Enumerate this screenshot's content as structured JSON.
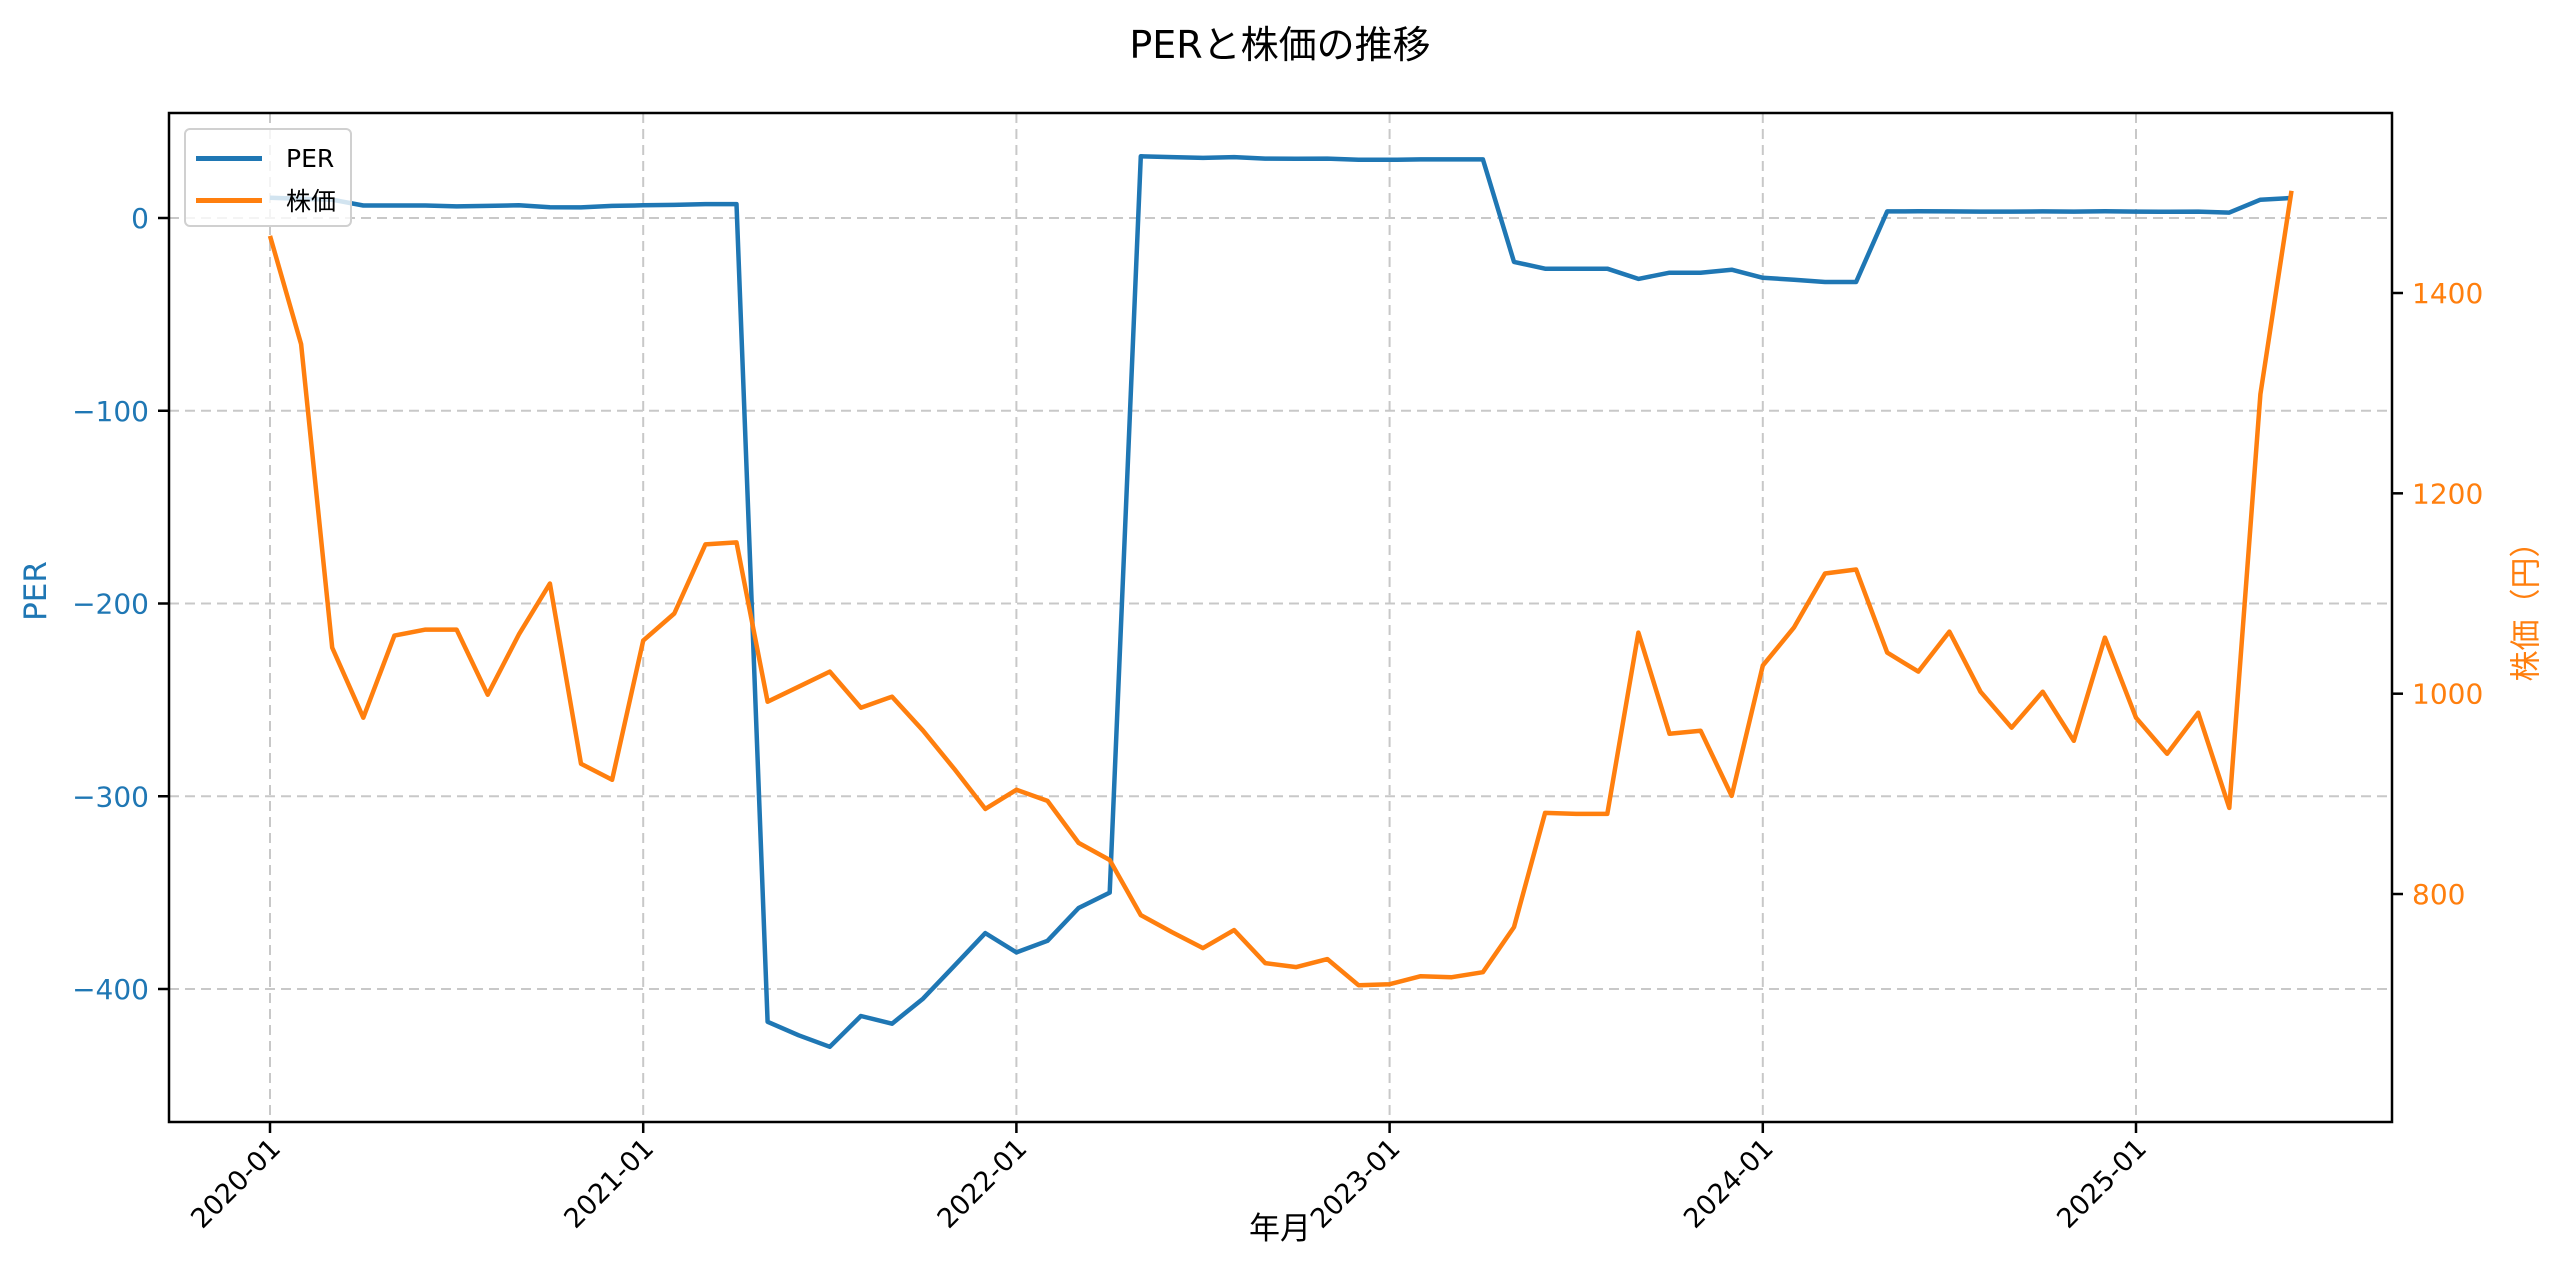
{
  "chart_data": {
    "type": "line",
    "title": "PERと株価の推移",
    "xlabel": "年月",
    "ylabel": "PER",
    "ylabel_right": "株価（円）",
    "x": [
      "2020-01",
      "2020-02",
      "2020-03",
      "2020-04",
      "2020-05",
      "2020-06",
      "2020-07",
      "2020-08",
      "2020-09",
      "2020-10",
      "2020-11",
      "2020-12",
      "2021-01",
      "2021-02",
      "2021-03",
      "2021-04",
      "2021-05",
      "2021-06",
      "2021-07",
      "2021-08",
      "2021-09",
      "2021-10",
      "2021-11",
      "2021-12",
      "2022-01",
      "2022-02",
      "2022-03",
      "2022-04",
      "2022-05",
      "2022-06",
      "2022-07",
      "2022-08",
      "2022-09",
      "2022-10",
      "2022-11",
      "2022-12",
      "2023-01",
      "2023-02",
      "2023-03",
      "2023-04",
      "2023-05",
      "2023-06",
      "2023-07",
      "2023-08",
      "2023-09",
      "2023-10",
      "2023-11",
      "2023-12",
      "2024-01",
      "2024-02",
      "2024-03",
      "2024-04",
      "2024-05",
      "2024-06",
      "2024-07",
      "2024-08",
      "2024-09",
      "2024-10",
      "2024-11",
      "2024-12",
      "2025-01",
      "2025-02",
      "2025-03",
      "2025-04",
      "2025-05",
      "2025-06"
    ],
    "series": [
      {
        "name": "PER",
        "axis": "left",
        "color": "#1f77b4",
        "values": [
          10.5,
          10.0,
          9.5,
          6.5,
          6.5,
          6.5,
          6.0,
          6.3,
          6.6,
          5.6,
          5.5,
          6.3,
          6.6,
          6.8,
          7.2,
          7.2,
          -417,
          -424,
          -430,
          -414,
          -418,
          -405,
          -388,
          -371,
          -381,
          -375,
          -358,
          -350,
          32,
          31.6,
          31.2,
          31.6,
          30.8,
          30.7,
          30.8,
          30.2,
          30.2,
          30.4,
          30.4,
          30.4,
          -22.8,
          -26.3,
          -26.3,
          -26.3,
          -31.6,
          -28.4,
          -28.4,
          -26.8,
          -31.0,
          -32.0,
          -33.2,
          -33.2,
          3.4,
          3.5,
          3.4,
          3.3,
          3.3,
          3.4,
          3.3,
          3.5,
          3.3,
          3.2,
          3.3,
          2.8,
          9.5,
          10.4
        ]
      },
      {
        "name": "株価",
        "axis": "right",
        "color": "#ff7f0e",
        "values": [
          1457,
          1349,
          1046,
          976,
          1058,
          1064,
          1064,
          999,
          1059,
          1110,
          930,
          914,
          1053,
          1080,
          1149,
          1151,
          992,
          1007,
          1022,
          986,
          997,
          963,
          925,
          885,
          904,
          893,
          851,
          834,
          779,
          762,
          746,
          764,
          731,
          727,
          735,
          709,
          710,
          718,
          717,
          722,
          767,
          881,
          880,
          880,
          1061,
          960,
          963,
          898,
          1028,
          1066,
          1120,
          1124,
          1041,
          1022,
          1062,
          1002,
          966,
          1002,
          953,
          1056,
          976,
          940,
          981,
          886,
          1299,
          1502
        ]
      }
    ],
    "x_ticks": [
      "2020-01",
      "2021-01",
      "2022-01",
      "2023-01",
      "2024-01",
      "2025-01"
    ],
    "y_ticks_left": [
      0,
      -100,
      -200,
      -300,
      -400
    ],
    "y_ticks_left_labels": [
      "0",
      "−100",
      "−200",
      "−300",
      "−400"
    ],
    "y_ticks_right": [
      800,
      1000,
      1200,
      1400
    ],
    "ylim": [
      -455,
      56
    ],
    "ylim_right": [
      631,
      1573
    ],
    "grid": true,
    "legend_position": "upper left"
  },
  "legend": {
    "per_label": "PER",
    "price_label": "株価"
  }
}
